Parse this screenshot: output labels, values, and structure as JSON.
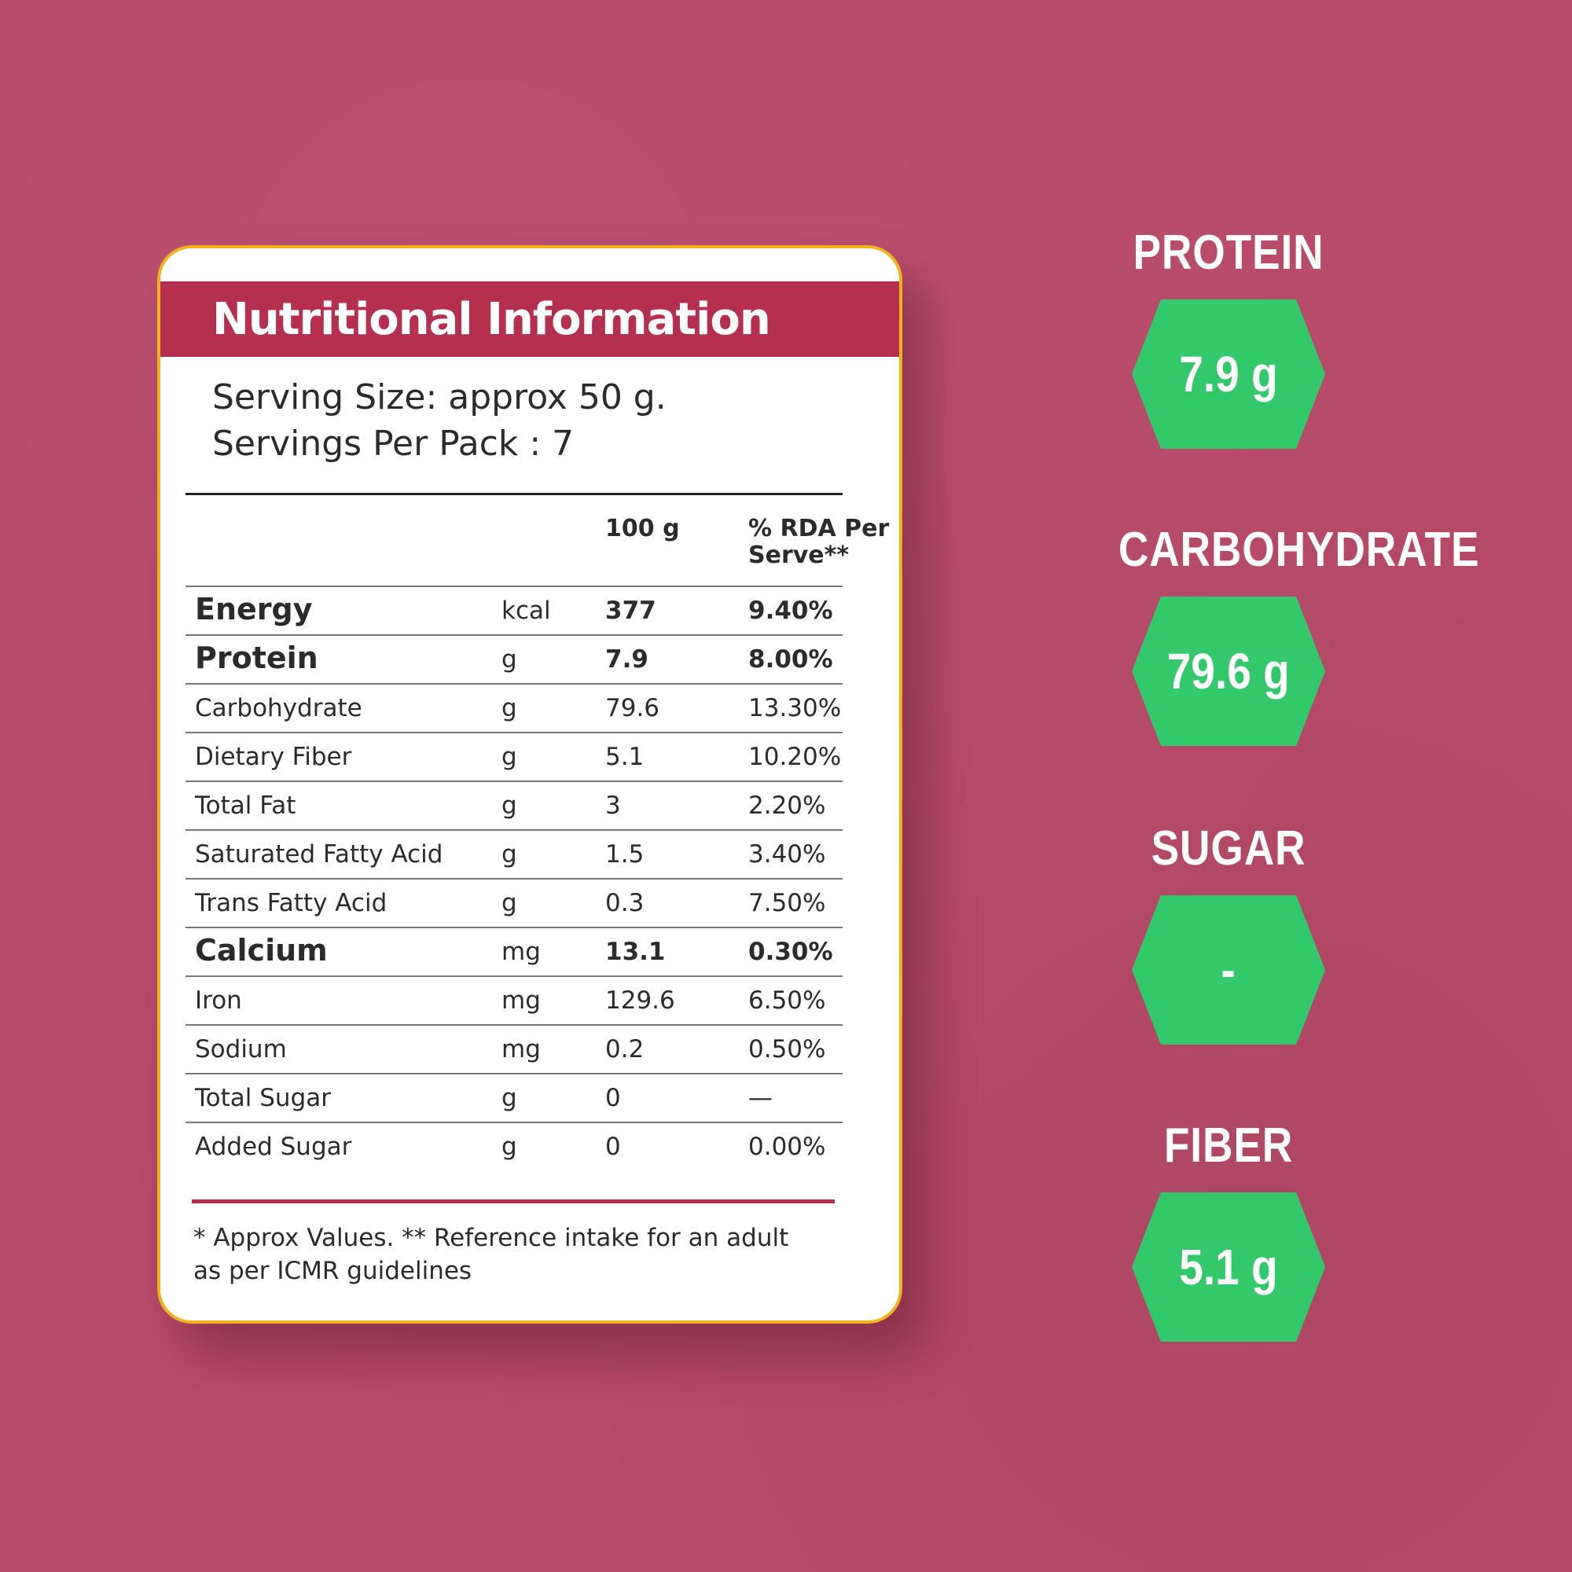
{
  "card": {
    "title": "Nutritional Information",
    "serving_size": "Serving Size: approx 50 g.",
    "servings_per_pack": "Servings Per Pack : 7",
    "columns": {
      "per100": "100 g",
      "rda": "% RDA Per Serve**"
    },
    "rows": [
      {
        "name": "Energy",
        "unit": "kcal",
        "value": "377",
        "rda": "9.40%"
      },
      {
        "name": "Protein",
        "unit": "g",
        "value": "7.9",
        "rda": "8.00%"
      },
      {
        "name": "Carbohydrate",
        "unit": "g",
        "value": "79.6",
        "rda": "13.30%"
      },
      {
        "name": "Dietary Fiber",
        "unit": "g",
        "value": "5.1",
        "rda": "10.20%"
      },
      {
        "name": "Total Fat",
        "unit": "g",
        "value": "3",
        "rda": "2.20%"
      },
      {
        "name": "Saturated Fatty Acid",
        "unit": "g",
        "value": "1.5",
        "rda": "3.40%"
      },
      {
        "name": "Trans Fatty Acid",
        "unit": "g",
        "value": "0.3",
        "rda": "7.50%"
      },
      {
        "name": "Calcium",
        "unit": "mg",
        "value": "13.1",
        "rda": "0.30%"
      },
      {
        "name": "Iron",
        "unit": "mg",
        "value": "129.6",
        "rda": "6.50%"
      },
      {
        "name": "Sodium",
        "unit": "mg",
        "value": "0.2",
        "rda": "0.50%"
      },
      {
        "name": "Total Sugar",
        "unit": "g",
        "value": "0",
        "rda": "—"
      },
      {
        "name": "Added Sugar",
        "unit": "g",
        "value": "0",
        "rda": "0.00%"
      }
    ],
    "footnote": "* Approx Values. ** Reference intake for an adult as per ICMR guidelines"
  },
  "highlights": [
    {
      "label": "PROTEIN",
      "value": "7.9 g"
    },
    {
      "label": "CARBOHYDRATE",
      "value": "79.6 g"
    },
    {
      "label": "SUGAR",
      "value": "-"
    },
    {
      "label": "FIBER",
      "value": "5.1 g"
    }
  ],
  "colors": {
    "background": "#b84a69",
    "header": "#b5304f",
    "card_border": "#f0b21e",
    "badge": "#33c96a"
  }
}
